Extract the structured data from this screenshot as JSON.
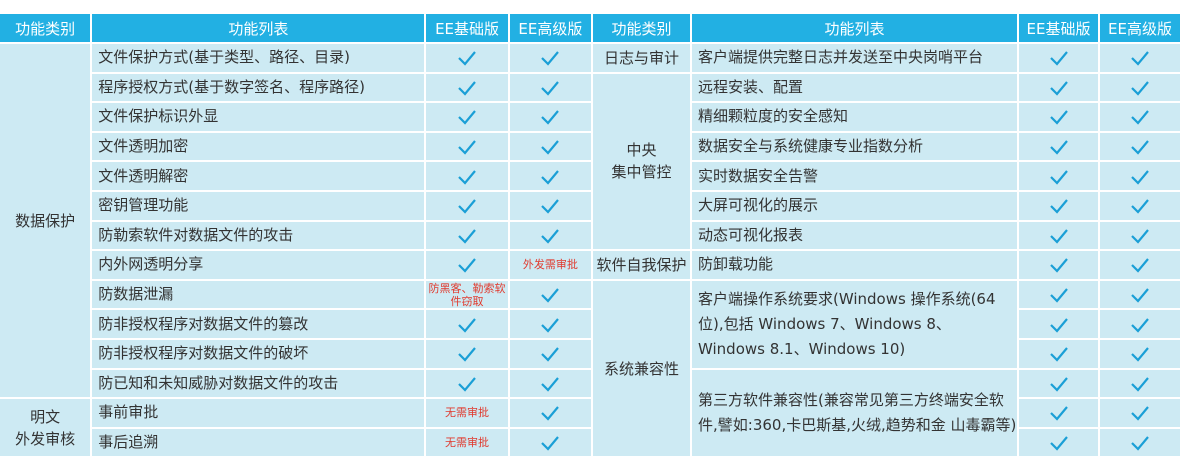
{
  "headers": {
    "category": "功能类别",
    "features": "功能列表",
    "basic": "EE基础版",
    "advanced": "EE高级版"
  },
  "colors": {
    "header": "#22b0e3",
    "cell": "#cdeaf3",
    "check": "#1a9fd6",
    "note": "#e03a2e"
  },
  "left": {
    "groups": [
      {
        "category": "数据保护",
        "rows": [
          {
            "feature": "文件保护方式(基于类型、路径、目录)",
            "basic": "check",
            "advanced": "check"
          },
          {
            "feature": "程序授权方式(基于数字签名、程序路径)",
            "basic": "check",
            "advanced": "check"
          },
          {
            "feature": "文件保护标识外显",
            "basic": "check",
            "advanced": "check"
          },
          {
            "feature": "文件透明加密",
            "basic": "check",
            "advanced": "check"
          },
          {
            "feature": "文件透明解密",
            "basic": "check",
            "advanced": "check"
          },
          {
            "feature": "密钥管理功能",
            "basic": "check",
            "advanced": "check"
          },
          {
            "feature": "防勒索软件对数据文件的攻击",
            "basic": "check",
            "advanced": "check"
          },
          {
            "feature": "内外网透明分享",
            "basic": "check",
            "advanced": "外发需审批"
          },
          {
            "feature": "防数据泄漏",
            "basic": "防黑客、勒索软件窃取",
            "advanced": "check"
          },
          {
            "feature": "防非授权程序对数据文件的篡改",
            "basic": "check",
            "advanced": "check"
          },
          {
            "feature": "防非授权程序对数据文件的破坏",
            "basic": "check",
            "advanced": "check"
          },
          {
            "feature": "防已知和未知威胁对数据文件的攻击",
            "basic": "check",
            "advanced": "check"
          }
        ]
      },
      {
        "category": "明文\n外发审核",
        "rows": [
          {
            "feature": "事前审批",
            "basic": "无需审批",
            "advanced": "check"
          },
          {
            "feature": "事后追溯",
            "basic": "无需审批",
            "advanced": "check"
          }
        ]
      }
    ]
  },
  "right": {
    "groups": [
      {
        "category": "日志与审计",
        "rows": [
          {
            "feature": "客户端提供完整日志并发送至中央岗哨平台",
            "basic": "check",
            "advanced": "check"
          }
        ]
      },
      {
        "category": "中央\n集中管控",
        "rows": [
          {
            "feature": "远程安装、配置",
            "basic": "check",
            "advanced": "check"
          },
          {
            "feature": "精细颗粒度的安全感知",
            "basic": "check",
            "advanced": "check"
          },
          {
            "feature": "数据安全与系统健康专业指数分析",
            "basic": "check",
            "advanced": "check"
          },
          {
            "feature": "实时数据安全告警",
            "basic": "check",
            "advanced": "check"
          },
          {
            "feature": "大屏可视化的展示",
            "basic": "check",
            "advanced": "check"
          },
          {
            "feature": "动态可视化报表",
            "basic": "check",
            "advanced": "check"
          }
        ]
      },
      {
        "category": "软件自我保护",
        "rows": [
          {
            "feature": "防卸载功能",
            "basic": "check",
            "advanced": "check"
          }
        ]
      },
      {
        "category": "系统兼容性",
        "rows": [
          {
            "feature": "客户端操作系统要求(Windows 操作系统(64 位),包括 Windows 7、Windows 8、Windows 8.1、Windows 10)",
            "span": 3,
            "basic": "check",
            "advanced": "check"
          },
          {
            "basic": "check",
            "advanced": "check"
          },
          {
            "basic": "check",
            "advanced": "check"
          },
          {
            "feature": "第三方软件兼容性(兼容常见第三方终端安全软件,譬如:360,卡巴斯基,火绒,趋势和金 山毒霸等)",
            "span": 3,
            "basic": "check",
            "advanced": "check"
          },
          {
            "basic": "check",
            "advanced": "check"
          },
          {
            "basic": "check",
            "advanced": "check"
          }
        ]
      }
    ]
  }
}
